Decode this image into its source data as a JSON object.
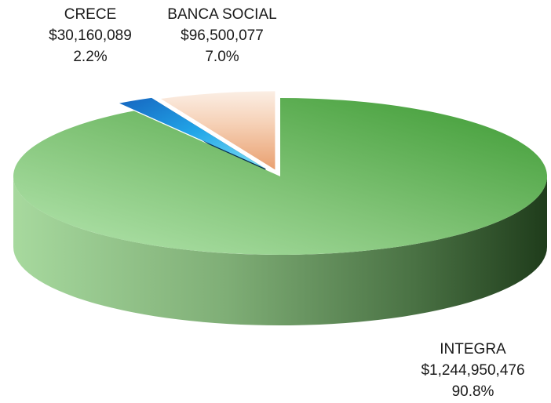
{
  "chart_data": {
    "type": "pie",
    "style": "3d-exploded",
    "series": [
      {
        "name": "INTEGRA",
        "value": 1244950476,
        "value_label": "$1,244,950,476",
        "percent": 90.8,
        "percent_label": "90.8%",
        "color": "#4aa03c"
      },
      {
        "name": "CRECE",
        "value": 30160089,
        "value_label": "$30,160,089",
        "percent": 2.2,
        "percent_label": "2.2%",
        "color": "#1f8fe0"
      },
      {
        "name": "BANCA SOCIAL",
        "value": 96500077,
        "value_label": "$96,500,077",
        "percent": 7.0,
        "percent_label": "7.0%",
        "color": "#f2c0a0"
      }
    ]
  }
}
